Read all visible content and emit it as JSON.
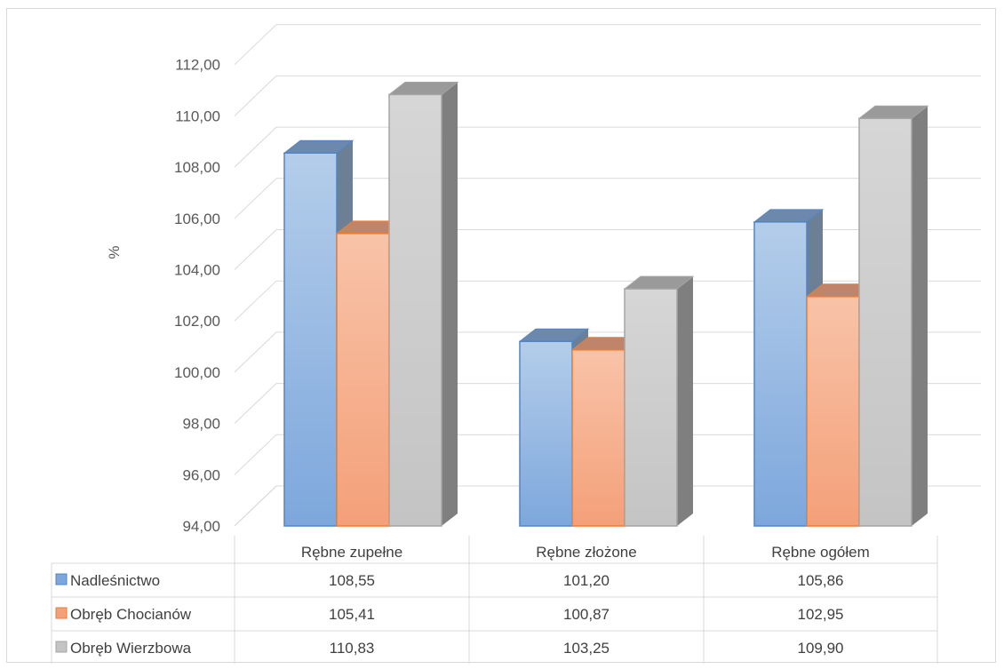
{
  "chart_data": {
    "type": "bar",
    "subtype": "3d-clustered-column-with-data-table",
    "title": "",
    "ylabel": "%",
    "ylim": [
      94,
      112
    ],
    "ytick_step": 2,
    "ytick_labels": [
      "94,00",
      "96,00",
      "98,00",
      "100,00",
      "102,00",
      "104,00",
      "106,00",
      "108,00",
      "110,00",
      "112,00"
    ],
    "grid": true,
    "legend": "data-table",
    "categories": [
      "Rębne zupełne",
      "Rębne złożone",
      "Rębne ogółem"
    ],
    "series": [
      {
        "name": "Nadleśnictwo",
        "values": [
          108.55,
          101.2,
          105.86
        ],
        "labels": [
          "108,55",
          "101,20",
          "105,86"
        ],
        "color_front_top": "#b4cdea",
        "color_front_bottom": "#7da7dc",
        "color_side": "#6c7f95",
        "color_top": "#6d88ad",
        "color_border": "#4f86c6"
      },
      {
        "name": "Obręb Chocianów",
        "values": [
          105.41,
          100.87,
          102.95
        ],
        "labels": [
          "105,41",
          "100,87",
          "102,95"
        ],
        "color_front_top": "#f8c3a8",
        "color_front_bottom": "#f4a079",
        "color_side": "#b4876e",
        "color_top": "#c0846a",
        "color_border": "#ed7d31"
      },
      {
        "name": "Obręb Wierzbowa",
        "values": [
          110.83,
          103.25,
          109.9
        ],
        "labels": [
          "110,83",
          "103,25",
          "109,90"
        ],
        "color_front_top": "#d6d6d6",
        "color_front_bottom": "#c4c4c4",
        "color_side": "#7f7f7f",
        "color_top": "#9a9a9a",
        "color_border": "#a5a5a5"
      }
    ]
  }
}
